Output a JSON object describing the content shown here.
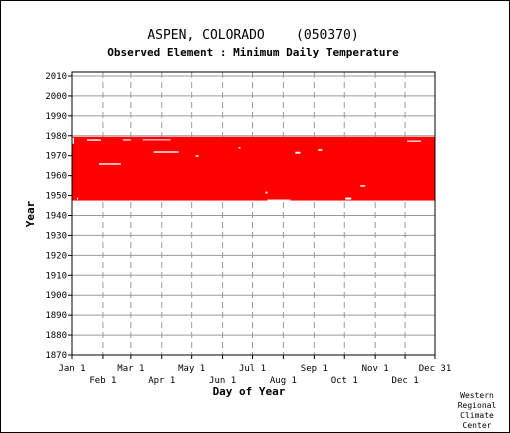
{
  "chart_data": {
    "type": "scatter",
    "title": "ASPEN, COLORADO    (050370)",
    "subtitle": "Observed Element : Minimum Daily Temperature",
    "xlabel": "Day of Year",
    "ylabel": "Year",
    "ylim": [
      1870,
      2012
    ],
    "yticks": [
      1870,
      1880,
      1890,
      1900,
      1910,
      1920,
      1930,
      1940,
      1950,
      1960,
      1970,
      1980,
      1990,
      2000,
      2010
    ],
    "x_ticks_top_row": [
      {
        "label": "Jan 1",
        "day": 1
      },
      {
        "label": "Mar 1",
        "day": 60
      },
      {
        "label": "May 1",
        "day": 121
      },
      {
        "label": "Jul 1",
        "day": 182
      },
      {
        "label": "Sep 1",
        "day": 244
      },
      {
        "label": "Nov 1",
        "day": 305
      },
      {
        "label": "Dec 31",
        "day": 365
      }
    ],
    "x_ticks_bottom_row": [
      {
        "label": "Feb 1",
        "day": 32
      },
      {
        "label": "Apr 1",
        "day": 91
      },
      {
        "label": "Jun 1",
        "day": 152
      },
      {
        "label": "Aug 1",
        "day": 213
      },
      {
        "label": "Oct 1",
        "day": 274
      },
      {
        "label": "Dec 1",
        "day": 335
      }
    ],
    "grid": true,
    "series": [
      {
        "color": "#ff0000",
        "data_coverage": {
          "start_year": 1947.5,
          "end_year": 1979.5,
          "day_start": 1,
          "day_end": 365
        },
        "gaps": [
          {
            "day_start": 1,
            "day_end": 3,
            "year_start": 1976,
            "year_end": 1979
          },
          {
            "day_start": 6,
            "day_end": 7,
            "year_start": 1948,
            "year_end": 1949
          },
          {
            "day_start": 16,
            "day_end": 30,
            "year_start": 1977.5,
            "year_end": 1978.2
          },
          {
            "day_start": 28,
            "day_end": 50,
            "year_start": 1965.5,
            "year_end": 1966.2
          },
          {
            "day_start": 52,
            "day_end": 60,
            "year_start": 1977.6,
            "year_end": 1978.2
          },
          {
            "day_start": 72,
            "day_end": 100,
            "year_start": 1977.8,
            "year_end": 1978.2
          },
          {
            "day_start": 83,
            "day_end": 108,
            "year_start": 1971.5,
            "year_end": 1972.2
          },
          {
            "day_start": 125,
            "day_end": 128,
            "year_start": 1969.5,
            "year_end": 1970.2
          },
          {
            "day_start": 168,
            "day_end": 170,
            "year_start": 1973.6,
            "year_end": 1974.3
          },
          {
            "day_start": 195,
            "day_end": 197,
            "year_start": 1951,
            "year_end": 1952
          },
          {
            "day_start": 197,
            "day_end": 220,
            "year_start": 1947.5,
            "year_end": 1948
          },
          {
            "day_start": 225,
            "day_end": 230,
            "year_start": 1971,
            "year_end": 1972
          },
          {
            "day_start": 248,
            "day_end": 252,
            "year_start": 1972.5,
            "year_end": 1973.3
          },
          {
            "day_start": 275,
            "day_end": 281,
            "year_start": 1948,
            "year_end": 1949
          },
          {
            "day_start": 290,
            "day_end": 295,
            "year_start": 1954.5,
            "year_end": 1955.2
          },
          {
            "day_start": 337,
            "day_end": 351,
            "year_start": 1977,
            "year_end": 1977.6
          }
        ]
      }
    ]
  },
  "credit_lines": [
    "Western",
    "Regional",
    "Climate",
    "Center"
  ]
}
